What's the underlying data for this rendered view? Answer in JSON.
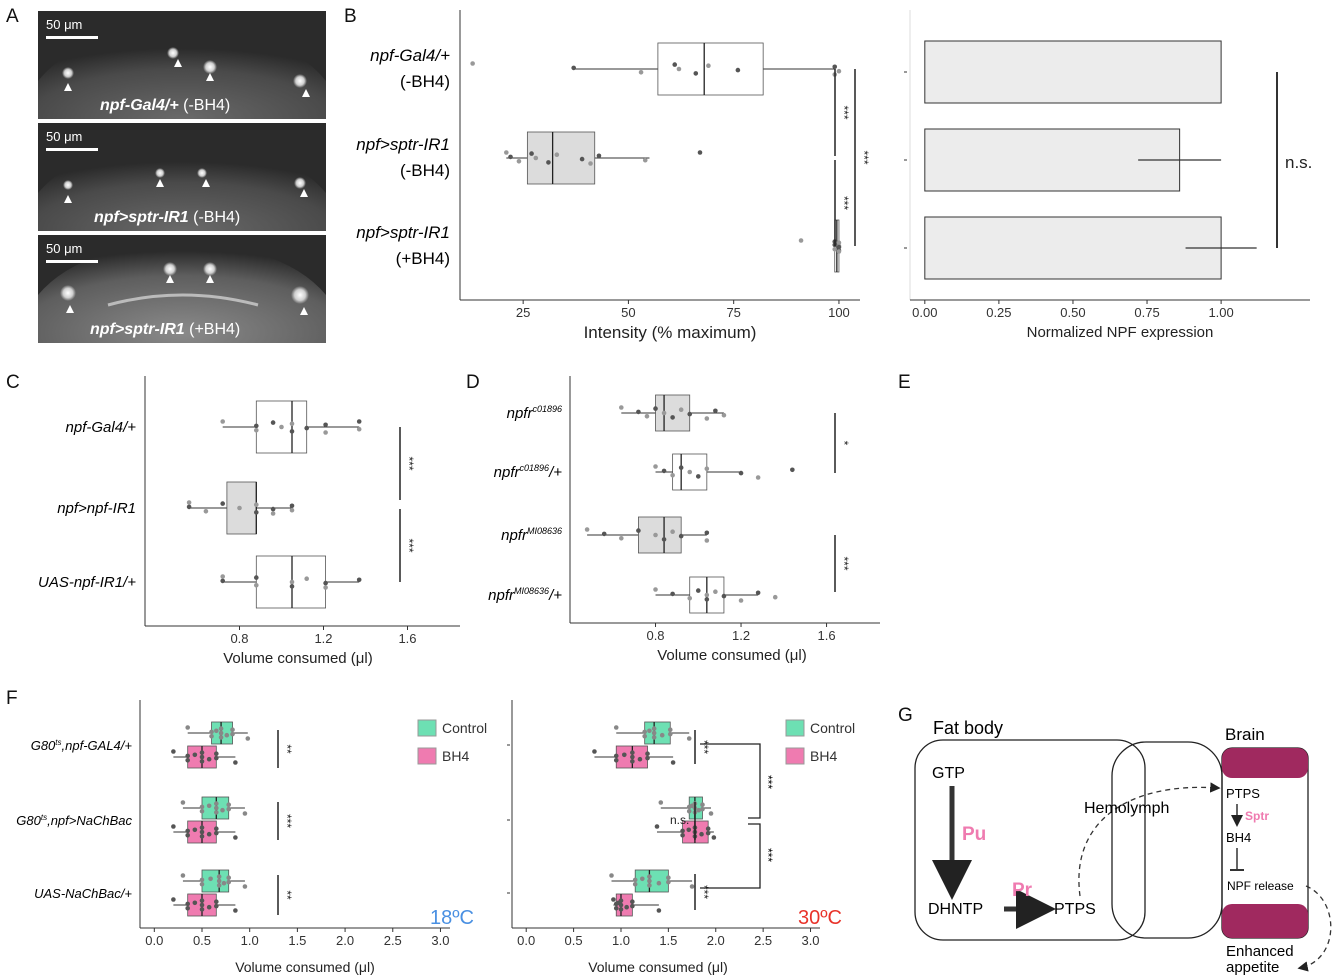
{
  "panel_letters": [
    "A",
    "B",
    "C",
    "D",
    "E",
    "F",
    "G"
  ],
  "panel_a": {
    "scale_label": "50 μm",
    "images": [
      {
        "genotype": "npf-Gal4/+",
        "treatment": "(-BH4)"
      },
      {
        "genotype": "npf>sptr-IR1",
        "treatment": "(-BH4)"
      },
      {
        "genotype": "npf>sptr-IR1",
        "treatment": "(+BH4)"
      }
    ]
  },
  "chart_data": [
    {
      "id": "B-left",
      "type": "box",
      "xlabel": "Intensity (% maximum)",
      "xlim": [
        10,
        105
      ],
      "xticks": [
        25,
        50,
        75,
        100
      ],
      "categories": [
        [
          "npf-Gal4/+",
          "(-BH4)"
        ],
        [
          "npf>sptr-IR1",
          "(-BH4)"
        ],
        [
          "npf>sptr-IR1",
          "(+BH4)"
        ]
      ],
      "boxes": [
        {
          "q1": 57,
          "median": 68,
          "q3": 82,
          "wmin": 37,
          "wmax": 99
        },
        {
          "q1": 26,
          "median": 32,
          "q3": 42,
          "wmin": 21,
          "wmax": 55
        },
        {
          "q1": 99,
          "median": 99.5,
          "q3": 100,
          "wmin": 99,
          "wmax": 100
        }
      ],
      "points": [
        [
          13,
          37,
          53,
          61,
          62,
          66,
          69,
          76,
          99,
          99,
          100
        ],
        [
          21,
          22,
          24,
          27,
          28,
          31,
          33,
          39,
          41,
          43,
          54,
          67
        ],
        [
          91,
          99,
          99,
          99,
          100,
          100,
          100,
          100,
          100
        ]
      ],
      "significance": [
        "***",
        "***",
        "***"
      ]
    },
    {
      "id": "B-right",
      "type": "bar",
      "xlabel": "Normalized NPF expression",
      "xlim": [
        -0.05,
        1.3
      ],
      "xticks": [
        "0.00",
        "0.25",
        "0.50",
        "0.75",
        "1.00"
      ],
      "values": [
        1.0,
        0.86,
        1.0
      ],
      "error": [
        [
          1.0,
          1.0
        ],
        [
          0.72,
          1.0
        ],
        [
          0.88,
          1.12
        ]
      ],
      "significance": "n.s."
    },
    {
      "id": "C",
      "type": "box",
      "xlabel": "Volume consumed (μl)",
      "xlim": [
        0.35,
        1.85
      ],
      "xticks": [
        "0.8",
        "1.2",
        "1.6"
      ],
      "categories": [
        "npf-Gal4/+",
        "npf>npf-IR1",
        "UAS-npf-IR1/+"
      ],
      "boxes": [
        {
          "q1": 0.88,
          "median": 1.05,
          "q3": 1.12,
          "wmin": 0.72,
          "wmax": 1.37
        },
        {
          "q1": 0.74,
          "median": 0.88,
          "q3": 0.88,
          "wmin": 0.56,
          "wmax": 1.05
        },
        {
          "q1": 0.88,
          "median": 1.05,
          "q3": 1.21,
          "wmin": 0.72,
          "wmax": 1.37
        }
      ],
      "points": [
        [
          0.72,
          0.88,
          0.88,
          0.96,
          1.0,
          1.05,
          1.05,
          1.12,
          1.21,
          1.21,
          1.37,
          1.37
        ],
        [
          0.56,
          0.56,
          0.64,
          0.72,
          0.8,
          0.88,
          0.88,
          0.96,
          0.96,
          1.05,
          1.05
        ],
        [
          0.72,
          0.72,
          0.88,
          0.88,
          1.05,
          1.05,
          1.12,
          1.21,
          1.21,
          1.37
        ]
      ],
      "significance": [
        "***",
        "***"
      ]
    },
    {
      "id": "D",
      "type": "box",
      "xlabel": "Volume consumed (μl)",
      "xlim": [
        0.4,
        1.85
      ],
      "xticks": [
        "0.8",
        "1.2",
        "1.6"
      ],
      "categories": [
        {
          "base": "npfr",
          "sup": "c01896"
        },
        {
          "base": "npfr",
          "sup": "c01896",
          "suffix": "/+"
        },
        {
          "base": "npfr",
          "sup": "MI08636"
        },
        {
          "base": "npfr",
          "sup": "MI08636",
          "suffix": "/+"
        }
      ],
      "boxes": [
        {
          "q1": 0.8,
          "median": 0.84,
          "q3": 0.96,
          "wmin": 0.64,
          "wmax": 1.12
        },
        {
          "q1": 0.88,
          "median": 0.92,
          "q3": 1.04,
          "wmin": 0.8,
          "wmax": 1.2
        },
        {
          "q1": 0.72,
          "median": 0.84,
          "q3": 0.92,
          "wmin": 0.48,
          "wmax": 1.04
        },
        {
          "q1": 0.96,
          "median": 1.04,
          "q3": 1.12,
          "wmin": 0.8,
          "wmax": 1.28
        }
      ],
      "points": [
        [
          0.64,
          0.72,
          0.76,
          0.8,
          0.84,
          0.88,
          0.92,
          0.96,
          1.04,
          1.08,
          1.12
        ],
        [
          0.8,
          0.84,
          0.88,
          0.92,
          0.96,
          1.0,
          1.04,
          1.2,
          1.28,
          1.44
        ],
        [
          0.48,
          0.56,
          0.64,
          0.72,
          0.8,
          0.84,
          0.88,
          0.92,
          1.04,
          1.04
        ],
        [
          0.8,
          0.88,
          0.96,
          1.0,
          1.04,
          1.04,
          1.08,
          1.12,
          1.2,
          1.28,
          1.36
        ]
      ],
      "significance": [
        "*",
        "***"
      ]
    },
    {
      "id": "F-18C",
      "type": "box",
      "xlabel": "Volume consumed (μl)",
      "xlim": [
        -0.15,
        3.1
      ],
      "xticks": [
        "0.0",
        "0.5",
        "1.0",
        "1.5",
        "2.0",
        "2.5",
        "3.0"
      ],
      "categories": [
        [
          "G80",
          "ts",
          ",npf-GAL4/+"
        ],
        [
          "G80",
          "ts",
          ",npf>NaChBac"
        ],
        [
          "UAS-NaChBac/+",
          "",
          ""
        ]
      ],
      "series": [
        {
          "name": "Control",
          "color": "#6de0b3",
          "boxes": [
            {
              "q1": 0.6,
              "median": 0.7,
              "q3": 0.82,
              "wmin": 0.35,
              "wmax": 0.98
            },
            {
              "q1": 0.5,
              "median": 0.65,
              "q3": 0.78,
              "wmin": 0.3,
              "wmax": 0.95
            },
            {
              "q1": 0.5,
              "median": 0.68,
              "q3": 0.78,
              "wmin": 0.3,
              "wmax": 0.95
            }
          ]
        },
        {
          "name": "BH4",
          "color": "#ef7bb0",
          "boxes": [
            {
              "q1": 0.35,
              "median": 0.5,
              "q3": 0.65,
              "wmin": 0.2,
              "wmax": 0.85
            },
            {
              "q1": 0.35,
              "median": 0.5,
              "q3": 0.65,
              "wmin": 0.2,
              "wmax": 0.85
            },
            {
              "q1": 0.35,
              "median": 0.5,
              "q3": 0.65,
              "wmin": 0.2,
              "wmax": 0.85
            }
          ]
        }
      ],
      "significance": [
        "**",
        "***",
        "**"
      ],
      "temperature": "18ºC",
      "temperature_color": "#4a90e2"
    },
    {
      "id": "F-30C",
      "type": "box",
      "xlabel": "Volume consumed (μl)",
      "xlim": [
        -0.15,
        3.1
      ],
      "xticks": [
        "0.0",
        "0.5",
        "1.0",
        "1.5",
        "2.0",
        "2.5",
        "3.0"
      ],
      "series": [
        {
          "name": "Control",
          "color": "#6de0b3",
          "boxes": [
            {
              "q1": 1.25,
              "median": 1.35,
              "q3": 1.52,
              "wmin": 0.95,
              "wmax": 1.72
            },
            {
              "q1": 1.72,
              "median": 1.78,
              "q3": 1.86,
              "wmin": 1.42,
              "wmax": 1.95
            },
            {
              "q1": 1.15,
              "median": 1.3,
              "q3": 1.5,
              "wmin": 0.9,
              "wmax": 1.75
            }
          ]
        },
        {
          "name": "BH4",
          "color": "#ef7bb0",
          "boxes": [
            {
              "q1": 0.95,
              "median": 1.12,
              "q3": 1.28,
              "wmin": 0.72,
              "wmax": 1.55
            },
            {
              "q1": 1.65,
              "median": 1.78,
              "q3": 1.92,
              "wmin": 1.38,
              "wmax": 1.98
            },
            {
              "q1": 0.95,
              "median": 1.0,
              "q3": 1.12,
              "wmin": 0.92,
              "wmax": 1.4
            }
          ]
        }
      ],
      "significance": [
        "***",
        "n.s.",
        "***",
        "***",
        "***"
      ],
      "temperature": "30ºC",
      "temperature_color": "#e8332a"
    }
  ],
  "legend": [
    "Control",
    "BH4"
  ],
  "panel_g": {
    "fat_body": "Fat body",
    "brain": "Brain",
    "gtp": "GTP",
    "pu": "Pu",
    "dhntp": "DHNTP",
    "pr": "Pr",
    "ptps_fat": "PTPS",
    "hemolymph": "Hemolymph",
    "ptps_brain": "PTPS",
    "sptr": "Sptr",
    "bh4": "BH4",
    "npf_release": "NPF release",
    "enhanced": "Enhanced",
    "appetite": "appetite",
    "brain_color": "#a0295f",
    "enzyme_color": "#ef7bb0"
  }
}
